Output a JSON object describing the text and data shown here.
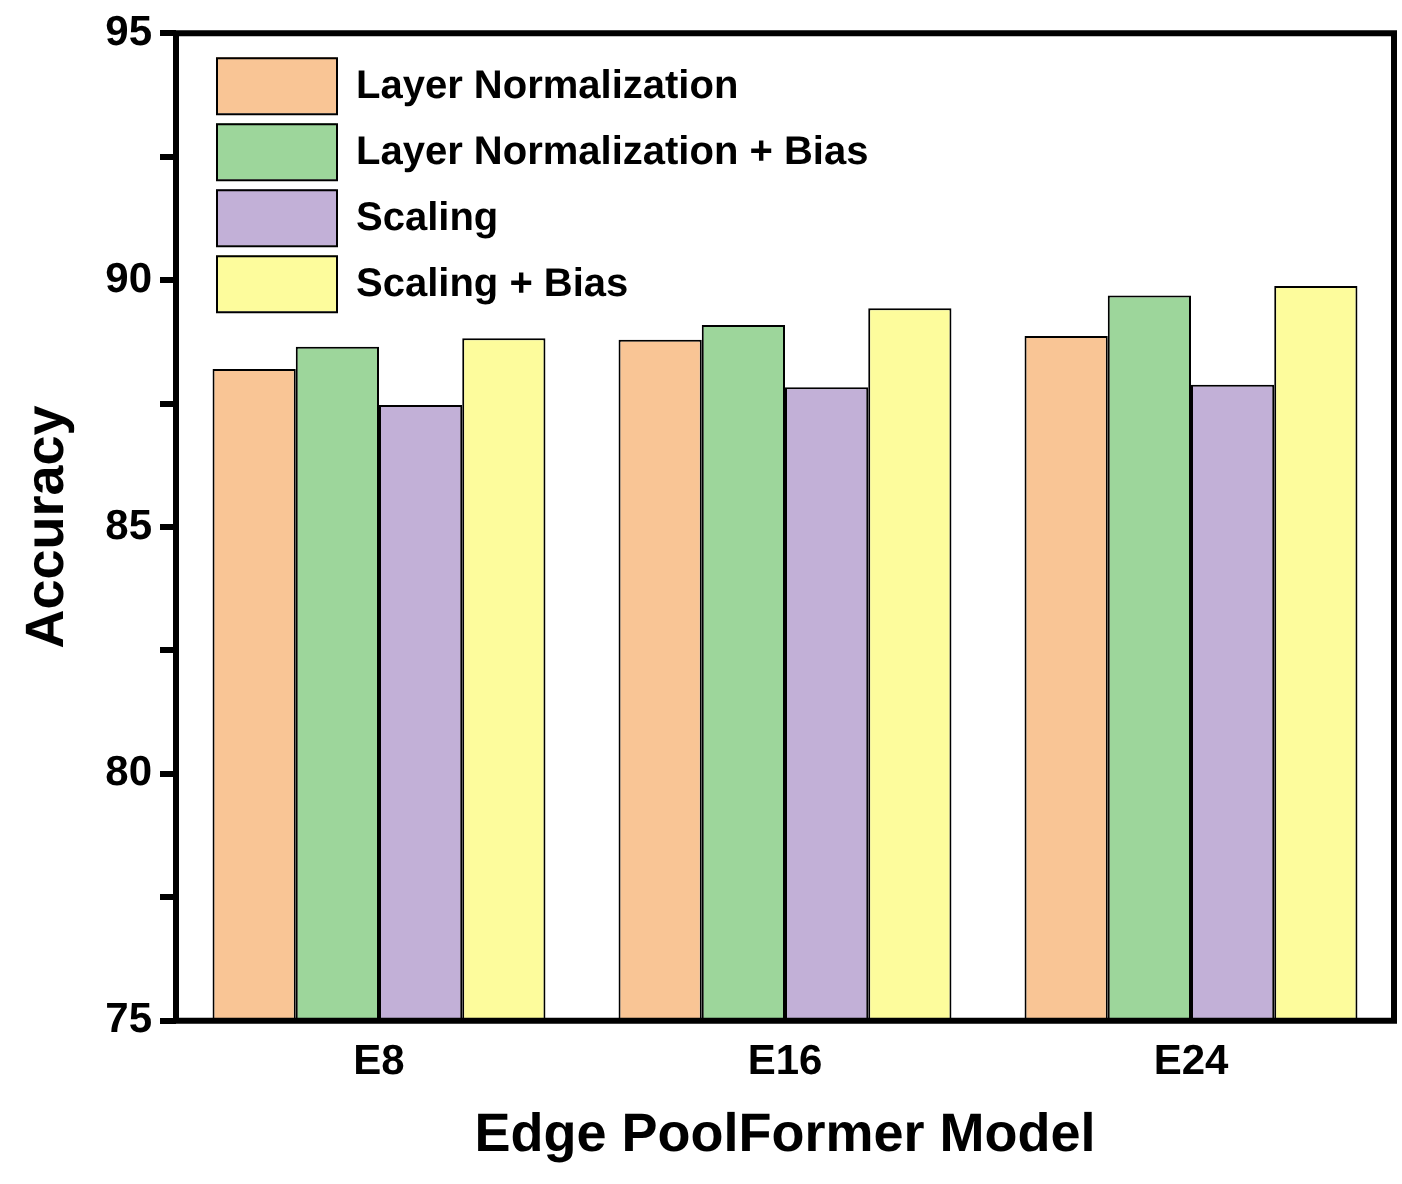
{
  "chart_data": {
    "type": "bar",
    "xlabel": "Edge PoolFormer Model",
    "ylabel": "Accuracy",
    "categories": [
      "E8",
      "E16",
      "E24"
    ],
    "series": [
      {
        "name": "Layer Normalization",
        "color": "#f9c595",
        "values": [
          88.2,
          88.79,
          88.87
        ]
      },
      {
        "name": "Layer Normalization + Bias",
        "color": "#9dd69b",
        "values": [
          88.65,
          89.09,
          89.69
        ]
      },
      {
        "name": "Scaling",
        "color": "#c2b0d7",
        "values": [
          87.47,
          87.83,
          87.88
        ]
      },
      {
        "name": "Scaling + Bias",
        "color": "#fdfc9c",
        "values": [
          88.82,
          89.43,
          89.88
        ]
      }
    ],
    "ylim": [
      75,
      95
    ],
    "yticks": [
      75,
      {
        "value": 77.5,
        "label": null
      },
      80,
      {
        "value": 82.5,
        "label": null
      },
      85,
      {
        "value": 87.5,
        "label": null
      },
      90,
      {
        "value": 92.5,
        "label": null
      },
      95
    ],
    "legend": "top left",
    "grid": false
  }
}
